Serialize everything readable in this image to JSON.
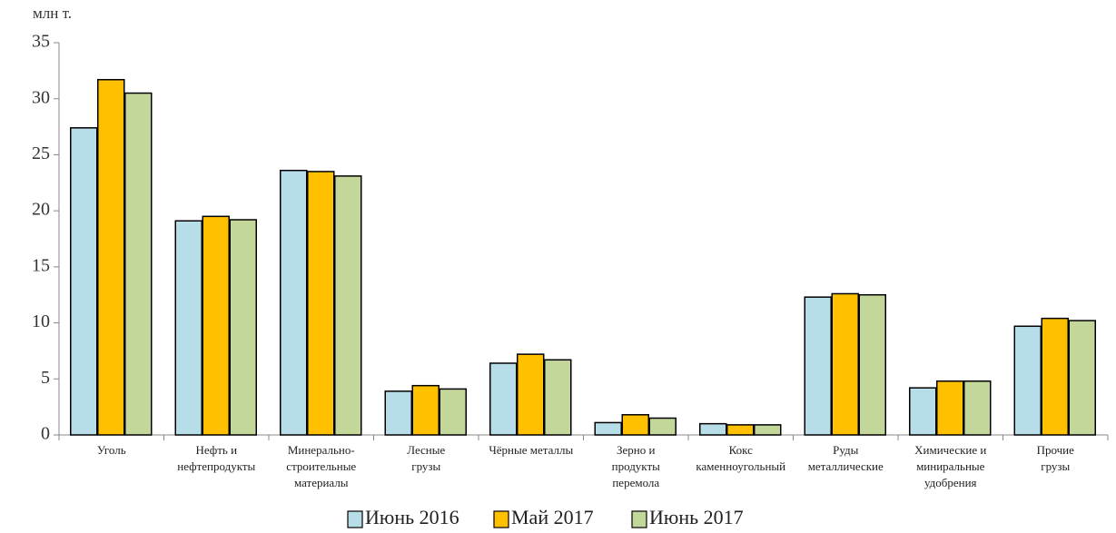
{
  "chart_data": {
    "type": "bar",
    "y_label": "млн т.",
    "categories": [
      "Уголь",
      "Нефть и\nнефтепродукты",
      "Минерально-\nстроительные\nматериалы",
      "Лесные\nгрузы",
      "Чёрные металлы",
      "Зерно и\nпродукты\nперемола",
      "Кокс\nкаменноугольный",
      "Руды\nметаллические",
      "Химические и\nминиральные\nудобрения",
      "Прочие\nгрузы"
    ],
    "series": [
      {
        "name": "Июнь 2016",
        "color": "#b7dde8",
        "values": [
          27.4,
          19.1,
          23.6,
          3.9,
          6.4,
          1.1,
          1.0,
          12.3,
          4.2,
          9.7
        ]
      },
      {
        "name": "Май 2017",
        "color": "#ffc000",
        "values": [
          31.7,
          19.5,
          23.5,
          4.4,
          7.2,
          1.8,
          0.9,
          12.6,
          4.8,
          10.4
        ]
      },
      {
        "name": "Июнь 2017",
        "color": "#c4d79b",
        "values": [
          30.5,
          19.2,
          23.1,
          4.1,
          6.7,
          1.5,
          0.9,
          12.5,
          4.8,
          10.2
        ]
      }
    ],
    "ylim": [
      0,
      35
    ],
    "yticks": [
      0,
      5,
      10,
      15,
      20,
      25,
      30,
      35
    ],
    "grid": false,
    "legend": "bottom"
  }
}
